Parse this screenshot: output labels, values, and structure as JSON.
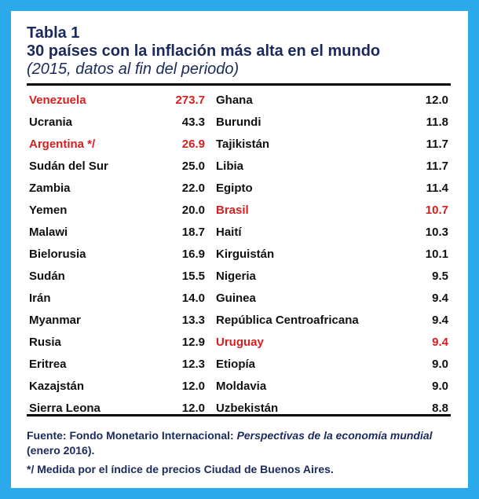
{
  "header": {
    "title": "Tabla 1",
    "subtitle": "30 países con la inflación más alta en el mundo",
    "period": "(2015, datos al fin del periodo)"
  },
  "colors": {
    "frame": "#2ba9ea",
    "heading": "#1b2a5c",
    "highlight": "#d42020",
    "text": "#111111"
  },
  "table": {
    "rows": [
      {
        "left_name": "Venezuela",
        "left_value": "273.7",
        "left_hl": true,
        "right_name": "Ghana",
        "right_value": "12.0",
        "right_hl": false
      },
      {
        "left_name": "Ucrania",
        "left_value": "43.3",
        "left_hl": false,
        "right_name": "Burundi",
        "right_value": "11.8",
        "right_hl": false
      },
      {
        "left_name": "Argentina */",
        "left_value": "26.9",
        "left_hl": true,
        "right_name": "Tajikistán",
        "right_value": "11.7",
        "right_hl": false
      },
      {
        "left_name": "Sudán del Sur",
        "left_value": "25.0",
        "left_hl": false,
        "right_name": "Libia",
        "right_value": "11.7",
        "right_hl": false
      },
      {
        "left_name": "Zambia",
        "left_value": "22.0",
        "left_hl": false,
        "right_name": "Egipto",
        "right_value": "11.4",
        "right_hl": false
      },
      {
        "left_name": "Yemen",
        "left_value": "20.0",
        "left_hl": false,
        "right_name": "Brasil",
        "right_value": "10.7",
        "right_hl": true
      },
      {
        "left_name": "Malawi",
        "left_value": "18.7",
        "left_hl": false,
        "right_name": "Haití",
        "right_value": "10.3",
        "right_hl": false
      },
      {
        "left_name": "Bielorusia",
        "left_value": "16.9",
        "left_hl": false,
        "right_name": "Kirguistán",
        "right_value": "10.1",
        "right_hl": false
      },
      {
        "left_name": "Sudán",
        "left_value": "15.5",
        "left_hl": false,
        "right_name": "Nigeria",
        "right_value": "9.5",
        "right_hl": false
      },
      {
        "left_name": "Irán",
        "left_value": "14.0",
        "left_hl": false,
        "right_name": "Guinea",
        "right_value": "9.4",
        "right_hl": false
      },
      {
        "left_name": "Myanmar",
        "left_value": "13.3",
        "left_hl": false,
        "right_name": "República Centroafricana",
        "right_value": "9.4",
        "right_hl": false
      },
      {
        "left_name": "Rusia",
        "left_value": "12.9",
        "left_hl": false,
        "right_name": "Uruguay",
        "right_value": "9.4",
        "right_hl": true
      },
      {
        "left_name": "Eritrea",
        "left_value": "12.3",
        "left_hl": false,
        "right_name": "Etiopía",
        "right_value": "9.0",
        "right_hl": false
      },
      {
        "left_name": "Kazajstán",
        "left_value": "12.0",
        "left_hl": false,
        "right_name": "Moldavia",
        "right_value": "9.0",
        "right_hl": false
      },
      {
        "left_name": "Sierra Leona",
        "left_value": "12.0",
        "left_hl": false,
        "right_name": "Uzbekistán",
        "right_value": "8.8",
        "right_hl": false
      }
    ]
  },
  "footer": {
    "source_prefix": "Fuente: Fondo Monetario Internacional: ",
    "source_title": "Perspectivas de la economía mundial",
    "source_suffix": " (enero 2016).",
    "note": "*/ Medida por el índice de precios Ciudad de Buenos Aires."
  }
}
